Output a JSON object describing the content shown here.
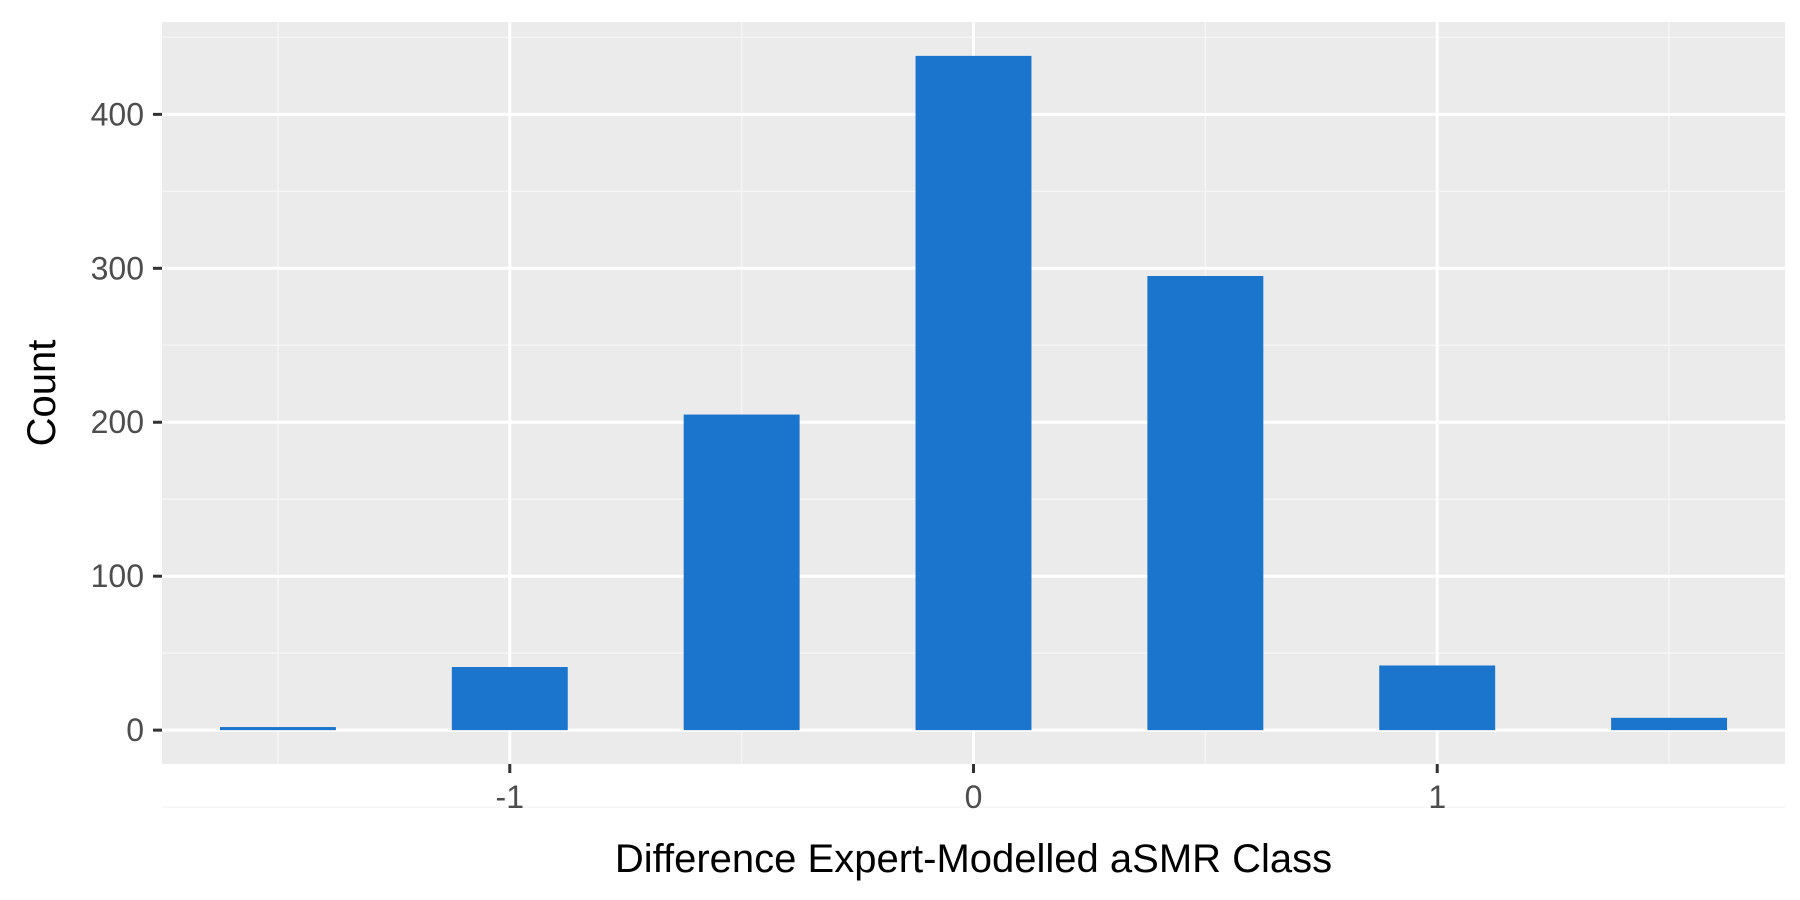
{
  "chart_data": {
    "type": "bar",
    "title": "",
    "xlabel": "Difference Expert-Modelled aSMR Class",
    "ylabel": "Count",
    "x": [
      -1.5,
      -1,
      -0.5,
      0,
      0.5,
      1,
      1.5
    ],
    "values": [
      2,
      41,
      205,
      438,
      295,
      42,
      8
    ],
    "bar_width": 0.25,
    "xlim": [
      -1.75,
      1.75
    ],
    "ylim": [
      -22,
      460
    ],
    "xticks": [
      -1,
      0,
      1
    ],
    "xtick_labels": [
      "-1",
      "0",
      "1"
    ],
    "yticks": [
      0,
      100,
      200,
      300,
      400
    ],
    "ytick_labels": [
      "0",
      "100",
      "200",
      "300",
      "400"
    ],
    "grid": true,
    "legend": "none",
    "colors": {
      "bar": "#1b75cd",
      "panel_background": "#ebebeb",
      "grid_major": "#ffffff",
      "grid_minor": "#f5f5f5",
      "tick": "#333333"
    }
  }
}
